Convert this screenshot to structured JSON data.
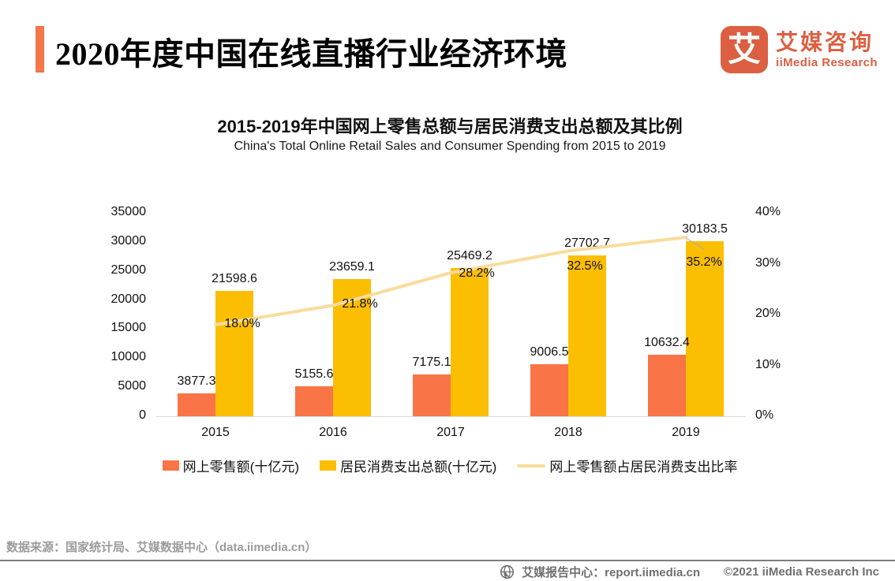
{
  "header": {
    "title": "2020年度中国在线直播行业经济环境"
  },
  "logo": {
    "mark": "艾",
    "name_cn": "艾媒咨询",
    "name_en": "iiMedia Research"
  },
  "chart": {
    "title": "2015-2019年中国网上零售总额与居民消费支出总额及其比例",
    "subtitle": "China's Total Online Retail Sales and Consumer Spending from 2015 to 2019"
  },
  "chart_data": {
    "type": "bar",
    "categories": [
      "2015",
      "2016",
      "2017",
      "2018",
      "2019"
    ],
    "series": [
      {
        "name": "网上零售额(十亿元)",
        "type": "bar",
        "color": "#F97446",
        "values": [
          3877.3,
          5155.6,
          7175.1,
          9006.5,
          10632.4
        ]
      },
      {
        "name": "居民消费支出总额(十亿元)",
        "type": "bar",
        "color": "#FBBE01",
        "values": [
          21598.6,
          23659.1,
          25469.2,
          27702.7,
          30183.5
        ]
      },
      {
        "name": "网上零售额占居民消费支出比率",
        "type": "line",
        "color": "#F9DC9C",
        "values": [
          18.0,
          21.8,
          28.2,
          32.5,
          35.2
        ],
        "labels": [
          "18.0%",
          "21.8%",
          "28.2%",
          "32.5%",
          "35.2%"
        ]
      }
    ],
    "left_axis": {
      "min": 0,
      "max": 35000,
      "step": 5000,
      "ticks": [
        "0",
        "5000",
        "10000",
        "15000",
        "20000",
        "25000",
        "30000",
        "35000"
      ]
    },
    "right_axis": {
      "min": 0,
      "max": 40,
      "step": 10,
      "ticks": [
        "0%",
        "10%",
        "20%",
        "30%",
        "40%"
      ]
    },
    "grid": false,
    "legend_position": "bottom"
  },
  "footer": {
    "source": "数据来源：国家统计局、艾媒数据中心（data.iimedia.cn）"
  },
  "bottombar": {
    "site": "艾媒报告中心：report.iimedia.cn",
    "copyright": "©2021  iiMedia Research Inc"
  }
}
